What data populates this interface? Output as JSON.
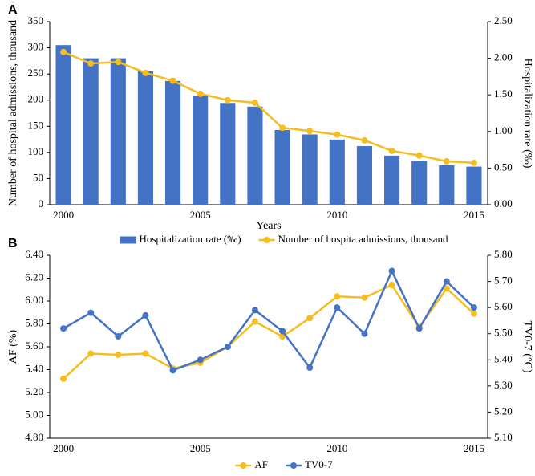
{
  "chart_data": [
    {
      "type": "bar",
      "label": "A",
      "xlabel": "Years",
      "ylabel": "Number of hospital admissions, thousand",
      "y2label": "Hospitalization rate (‰)",
      "categories": [
        "2000",
        null,
        null,
        null,
        null,
        "2005",
        null,
        null,
        null,
        null,
        "2010",
        null,
        null,
        null,
        null,
        "2015"
      ],
      "ylim": [
        0,
        350
      ],
      "yticks": [
        0,
        50,
        100,
        150,
        200,
        250,
        300,
        350
      ],
      "y2lim": [
        0,
        2.5
      ],
      "y2ticks": [
        {
          "value": 0,
          "label": "0.00"
        },
        {
          "value": 0.5,
          "label": "0.50"
        },
        {
          "value": 1,
          "label": "1.00"
        },
        {
          "value": 1.5,
          "label": "1.50"
        },
        {
          "value": 2,
          "label": "2.00"
        },
        {
          "value": 2.5,
          "label": "2.50"
        }
      ],
      "series": [
        {
          "name": "Hospitalization rate (‰)",
          "type": "bar",
          "axis": "y2",
          "color": "#4472c4",
          "values": [
            2.18,
            2.0,
            2.0,
            1.82,
            1.69,
            1.49,
            1.39,
            1.34,
            1.02,
            0.96,
            0.89,
            0.8,
            0.67,
            0.6,
            0.54,
            0.52
          ]
        },
        {
          "name": "Number of hospita admissions, thousand",
          "type": "line",
          "color": "#f5bd1f",
          "values": [
            292,
            270,
            273,
            252,
            237,
            212,
            200,
            195,
            147,
            141,
            134,
            123,
            103,
            94,
            83,
            80
          ]
        }
      ]
    },
    {
      "type": "line",
      "label": "B",
      "ylabel": "AF (%)",
      "y2label": "TV0-7 (°C)",
      "categories": [
        "2000",
        null,
        null,
        null,
        null,
        "2005",
        null,
        null,
        null,
        null,
        "2010",
        null,
        null,
        null,
        null,
        "2015"
      ],
      "ylim": [
        4.8,
        6.4
      ],
      "yticks": [
        {
          "value": 4.8,
          "label": "4.80"
        },
        {
          "value": 5.0,
          "label": "5.00"
        },
        {
          "value": 5.2,
          "label": "5.20"
        },
        {
          "value": 5.4,
          "label": "5.40"
        },
        {
          "value": 5.6,
          "label": "5.60"
        },
        {
          "value": 5.8,
          "label": "5.80"
        },
        {
          "value": 6.0,
          "label": "6.00"
        },
        {
          "value": 6.2,
          "label": "6.20"
        },
        {
          "value": 6.4,
          "label": "6.40"
        }
      ],
      "y2lim": [
        5.1,
        5.8
      ],
      "y2ticks": [
        {
          "value": 5.1,
          "label": "5.10"
        },
        {
          "value": 5.2,
          "label": "5.20"
        },
        {
          "value": 5.3,
          "label": "5.30"
        },
        {
          "value": 5.4,
          "label": "5.40"
        },
        {
          "value": 5.5,
          "label": "5.50"
        },
        {
          "value": 5.6,
          "label": "5.60"
        },
        {
          "value": 5.7,
          "label": "5.70"
        },
        {
          "value": 5.8,
          "label": "5.80"
        }
      ],
      "series": [
        {
          "name": "AF",
          "type": "line",
          "color": "#f5bd1f",
          "values": [
            5.32,
            5.54,
            5.53,
            5.54,
            5.41,
            5.46,
            5.6,
            5.82,
            5.69,
            5.85,
            6.04,
            6.03,
            6.14,
            5.77,
            6.11,
            5.89
          ]
        },
        {
          "name": "TV0-7",
          "type": "line",
          "axis": "y2",
          "color": "#4472c4",
          "values": [
            5.52,
            5.58,
            5.49,
            5.57,
            5.36,
            5.4,
            5.45,
            5.59,
            5.51,
            5.37,
            5.6,
            5.5,
            5.74,
            5.52,
            5.7,
            5.6
          ]
        }
      ]
    }
  ]
}
